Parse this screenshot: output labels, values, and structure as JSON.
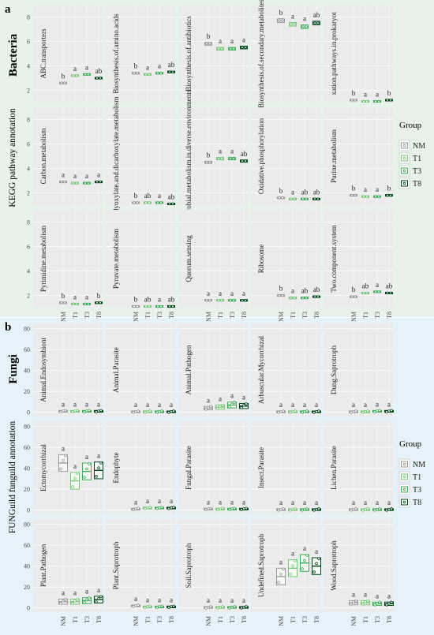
{
  "figure": {
    "panel_a": {
      "letter": "a",
      "kingdom": "Bacteria",
      "ylabel": "KEGG pathway annotation",
      "background": "#e7f3ea",
      "yticks": [
        "2",
        "4",
        "6",
        "8"
      ]
    },
    "panel_b": {
      "letter": "b",
      "kingdom": "Fungi",
      "ylabel": "FUNGuild funguild annotation",
      "background": "#e6f2f9",
      "yticks": [
        "0",
        "20",
        "40",
        "60",
        "80"
      ]
    },
    "legend": {
      "title": "Group",
      "items": [
        "NM",
        "T1",
        "T3",
        "T8"
      ]
    },
    "groups": [
      "NM",
      "T1",
      "T3",
      "T8"
    ],
    "group_colors": {
      "NM": "#999999",
      "T1": "#78c679",
      "T3": "#41ab5d",
      "T8": "#00441b"
    }
  },
  "chart_data": [
    {
      "type": "box",
      "panel": "a",
      "ylim": [
        1,
        9
      ],
      "groups": [
        "NM",
        "T1",
        "T3",
        "T8"
      ],
      "facets": [
        {
          "title": "ABC.transporters",
          "medians": [
            2.6,
            3.2,
            3.3,
            3.0
          ],
          "letters": [
            "b",
            "a",
            "a",
            "ab"
          ]
        },
        {
          "title": "Biosynthesis.of.amino.acids",
          "medians": [
            3.4,
            3.3,
            3.4,
            3.5
          ],
          "letters": [
            "b",
            "a",
            "a",
            "ab"
          ]
        },
        {
          "title": "Biosynthesis.of.antibiotics",
          "medians": [
            5.8,
            5.4,
            5.4,
            5.5
          ],
          "letters": [
            "b",
            "a",
            "a",
            "a"
          ]
        },
        {
          "title": "Biosynthesis.of.secondary.metabolites",
          "medians": [
            7.7,
            7.4,
            7.2,
            7.5
          ],
          "letters": [
            "b",
            "a",
            "a",
            "ab"
          ]
        },
        {
          "title": "xation.pathways.in.prokaryot",
          "medians": [
            1.2,
            1.1,
            1.1,
            1.2
          ],
          "letters": [
            "b",
            "a",
            "a",
            "b"
          ]
        },
        {
          "title": "Carbon.metabolism",
          "medians": [
            2.9,
            2.8,
            2.8,
            2.9
          ],
          "letters": [
            "a",
            "a",
            "a",
            "a"
          ]
        },
        {
          "title": "Glyoxylate.and.dicarboxylate.metabolism",
          "medians": [
            1.2,
            1.2,
            1.2,
            1.1
          ],
          "letters": [
            "b",
            "ab",
            "a",
            "ab"
          ]
        },
        {
          "title": "Microbial.metabolism.in.diverse.environments",
          "medians": [
            4.5,
            4.8,
            4.8,
            4.6
          ],
          "letters": [
            "b",
            "a",
            "a",
            "ab"
          ]
        },
        {
          "title": "Oxidative.phosphorylation",
          "medians": [
            1.6,
            1.5,
            1.5,
            1.5
          ],
          "letters": [
            "b",
            "a",
            "ab",
            "ab"
          ]
        },
        {
          "title": "Purine.metabolism",
          "medians": [
            1.8,
            1.7,
            1.7,
            1.8
          ],
          "letters": [
            "b",
            "a",
            "a",
            "b"
          ]
        },
        {
          "title": "Pyrimidine.metabolism",
          "medians": [
            1.4,
            1.3,
            1.3,
            1.4
          ],
          "letters": [
            "b",
            "a",
            "a",
            "b"
          ]
        },
        {
          "title": "Pyruvate.metabolism",
          "medians": [
            1.1,
            1.1,
            1.1,
            1.1
          ],
          "letters": [
            "b",
            "ab",
            "a",
            "ab"
          ]
        },
        {
          "title": "Quorum.sensing",
          "medians": [
            1.6,
            1.6,
            1.6,
            1.6
          ],
          "letters": [
            "a",
            "a",
            "a",
            "a"
          ]
        },
        {
          "title": "Ribosome",
          "medians": [
            2.0,
            1.8,
            1.8,
            1.9
          ],
          "letters": [
            "b",
            "a",
            "ab",
            "ab"
          ]
        },
        {
          "title": "Two.component.system",
          "medians": [
            1.9,
            2.2,
            2.3,
            2.2
          ],
          "letters": [
            "b",
            "ab",
            "a",
            "ab"
          ]
        }
      ]
    },
    {
      "type": "box",
      "panel": "b",
      "ylim": [
        -4,
        85
      ],
      "groups": [
        "NM",
        "T1",
        "T3",
        "T8"
      ],
      "facets": [
        {
          "title": "Animal.Endosymbiont",
          "medians": [
            1,
            1,
            1,
            1
          ],
          "letters": [
            "a",
            "a",
            "a",
            "a"
          ]
        },
        {
          "title": "Animal.Parasite",
          "medians": [
            0.5,
            0.5,
            0.5,
            0.5
          ],
          "letters": [
            "a",
            "a",
            "a",
            "a"
          ]
        },
        {
          "title": "Animal.Pathogen",
          "medians": [
            4,
            5,
            7,
            6
          ],
          "letters": [
            "a",
            "a",
            "a",
            "a"
          ]
        },
        {
          "title": "Arbuscular.Mycorrhizal",
          "medians": [
            0.5,
            0.5,
            0.5,
            0.5
          ],
          "letters": [
            "a",
            "a",
            "a",
            "a"
          ]
        },
        {
          "title": "Dung.Saprotroph",
          "medians": [
            0.5,
            0.5,
            1,
            1
          ],
          "letters": [
            "a",
            "a",
            "a",
            "a"
          ]
        },
        {
          "title": "Ectomycorrhizal",
          "medians": [
            45,
            28,
            37,
            38
          ],
          "letters": [
            "a",
            "a",
            "a",
            "a"
          ]
        },
        {
          "title": "Endophyte",
          "medians": [
            1,
            2,
            2,
            2
          ],
          "letters": [
            "a",
            "a",
            "a",
            "a"
          ]
        },
        {
          "title": "Fungal.Parasite",
          "medians": [
            1,
            1,
            1,
            1
          ],
          "letters": [
            "a",
            "a",
            "a",
            "a"
          ]
        },
        {
          "title": "Insect.Parasite",
          "medians": [
            0.5,
            0.5,
            0.5,
            0.5
          ],
          "letters": [
            "a",
            "a",
            "a",
            "a"
          ]
        },
        {
          "title": "Lichen.Parasite",
          "medians": [
            0.5,
            0.5,
            0.5,
            0.5
          ],
          "letters": [
            "a",
            "a",
            "a",
            "a"
          ]
        },
        {
          "title": "Plant.Pathogen",
          "medians": [
            6,
            6,
            7,
            8
          ],
          "letters": [
            "a",
            "a",
            "a",
            "a"
          ]
        },
        {
          "title": "Plant.Saprotroph",
          "medians": [
            2,
            1,
            1,
            1
          ],
          "letters": [
            "a",
            "a",
            "a",
            "a"
          ]
        },
        {
          "title": "Soil.Saprotroph",
          "medians": [
            0.5,
            0.5,
            0.5,
            0.5
          ],
          "letters": [
            "a",
            "a",
            "a",
            "a"
          ]
        },
        {
          "title": "Undefined.Saprotroph",
          "medians": [
            30,
            38,
            43,
            40
          ],
          "letters": [
            "a",
            "a",
            "a",
            "a"
          ]
        },
        {
          "title": "Wood.Saprotroph",
          "medians": [
            5,
            5,
            4,
            4
          ],
          "letters": [
            "a",
            "a",
            "a",
            "a"
          ]
        }
      ]
    }
  ]
}
